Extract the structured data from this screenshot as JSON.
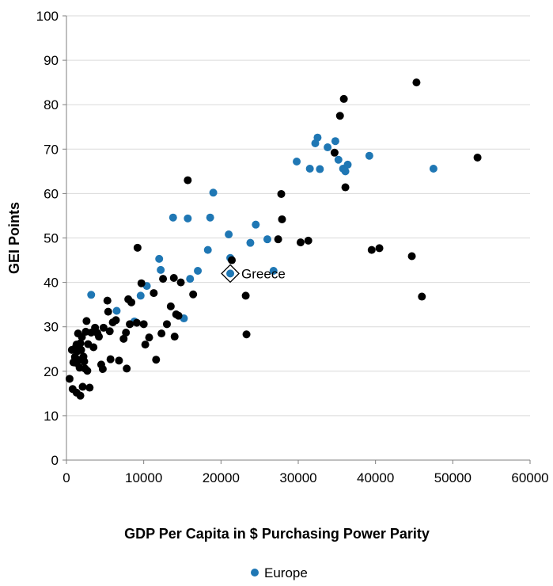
{
  "chart_data": {
    "type": "scatter",
    "xlabel": "GDP  Per Capita in $ Purchasing Power Parity",
    "ylabel": "GEI Points",
    "xlim": [
      0,
      60000
    ],
    "ylim": [
      0,
      100
    ],
    "x_ticks": [
      "0",
      "10000",
      "20000",
      "30000",
      "40000",
      "50000",
      "60000"
    ],
    "y_ticks": [
      "0",
      "10",
      "20",
      "30",
      "40",
      "50",
      "60",
      "70",
      "80",
      "90",
      "100"
    ],
    "grid": "horizontal",
    "legend_position": "bottom",
    "colors": {
      "europe": "#1f77b4",
      "other": "#000000",
      "axis": "#7f7f7f",
      "grid": "#d9d9d9"
    },
    "annotation": {
      "text": "Greece",
      "x": 21200,
      "y": 42.0,
      "marker": "diamond"
    },
    "series": [
      {
        "name": "Europe",
        "color": "#1f77b4",
        "points": [
          [
            3200,
            37.2
          ],
          [
            6500,
            33.6
          ],
          [
            8800,
            31.2
          ],
          [
            9600,
            37.0
          ],
          [
            10400,
            39.2
          ],
          [
            12000,
            45.3
          ],
          [
            12200,
            42.8
          ],
          [
            13800,
            54.6
          ],
          [
            15200,
            31.9
          ],
          [
            15700,
            54.4
          ],
          [
            16000,
            40.8
          ],
          [
            17000,
            42.6
          ],
          [
            18300,
            47.3
          ],
          [
            18600,
            54.6
          ],
          [
            19000,
            60.2
          ],
          [
            21000,
            50.8
          ],
          [
            21200,
            45.5
          ],
          [
            21200,
            42.0
          ],
          [
            23800,
            48.9
          ],
          [
            24500,
            53.0
          ],
          [
            26000,
            49.7
          ],
          [
            26800,
            42.6
          ],
          [
            29800,
            67.2
          ],
          [
            31500,
            65.6
          ],
          [
            32200,
            71.3
          ],
          [
            32500,
            72.6
          ],
          [
            32800,
            65.5
          ],
          [
            33800,
            70.4
          ],
          [
            34800,
            71.8
          ],
          [
            35200,
            67.6
          ],
          [
            35800,
            65.6
          ],
          [
            36100,
            65.0
          ],
          [
            36400,
            66.5
          ],
          [
            39200,
            68.5
          ],
          [
            47500,
            65.6
          ]
        ]
      },
      {
        "name": "",
        "color": "#000000",
        "points": [
          [
            400,
            18.3
          ],
          [
            700,
            24.8
          ],
          [
            800,
            16.0
          ],
          [
            900,
            22.0
          ],
          [
            1000,
            25.0
          ],
          [
            1100,
            23.2
          ],
          [
            1200,
            21.9
          ],
          [
            1300,
            15.2
          ],
          [
            1300,
            26.0
          ],
          [
            1400,
            24.5
          ],
          [
            1500,
            28.5
          ],
          [
            1600,
            22.5
          ],
          [
            1700,
            20.8
          ],
          [
            1800,
            14.5
          ],
          [
            1800,
            26.3
          ],
          [
            1900,
            24.8
          ],
          [
            2000,
            27.7
          ],
          [
            2100,
            16.5
          ],
          [
            2200,
            23.3
          ],
          [
            2300,
            22.2
          ],
          [
            2400,
            20.6
          ],
          [
            2500,
            28.9
          ],
          [
            2600,
            31.3
          ],
          [
            2700,
            20.1
          ],
          [
            2800,
            26.1
          ],
          [
            3000,
            16.3
          ],
          [
            3200,
            28.7
          ],
          [
            3500,
            25.4
          ],
          [
            3700,
            29.8
          ],
          [
            4000,
            28.6
          ],
          [
            4200,
            27.8
          ],
          [
            4500,
            21.5
          ],
          [
            4700,
            20.5
          ],
          [
            4800,
            29.8
          ],
          [
            5300,
            35.9
          ],
          [
            5400,
            33.4
          ],
          [
            5600,
            29.0
          ],
          [
            5700,
            22.7
          ],
          [
            6000,
            31.0
          ],
          [
            6400,
            31.5
          ],
          [
            6800,
            22.4
          ],
          [
            7400,
            27.3
          ],
          [
            7700,
            28.7
          ],
          [
            7800,
            20.6
          ],
          [
            8000,
            36.2
          ],
          [
            8200,
            30.6
          ],
          [
            8400,
            35.5
          ],
          [
            9100,
            30.9
          ],
          [
            9200,
            47.8
          ],
          [
            9700,
            39.8
          ],
          [
            10000,
            30.6
          ],
          [
            10200,
            26.0
          ],
          [
            10700,
            27.6
          ],
          [
            11300,
            37.6
          ],
          [
            11600,
            22.6
          ],
          [
            12300,
            28.5
          ],
          [
            12500,
            40.8
          ],
          [
            13000,
            30.6
          ],
          [
            13500,
            34.6
          ],
          [
            13900,
            41.0
          ],
          [
            14000,
            27.8
          ],
          [
            14200,
            32.8
          ],
          [
            14500,
            32.5
          ],
          [
            14800,
            40.0
          ],
          [
            15700,
            63.0
          ],
          [
            16400,
            37.3
          ],
          [
            21400,
            45.0
          ],
          [
            23200,
            37.0
          ],
          [
            23300,
            28.3
          ],
          [
            27400,
            49.7
          ],
          [
            27800,
            59.9
          ],
          [
            27900,
            54.2
          ],
          [
            30300,
            49.0
          ],
          [
            31300,
            49.4
          ],
          [
            34700,
            69.2
          ],
          [
            35400,
            77.5
          ],
          [
            35900,
            81.3
          ],
          [
            36100,
            61.4
          ],
          [
            39500,
            47.3
          ],
          [
            40500,
            47.7
          ],
          [
            44700,
            45.9
          ],
          [
            45300,
            85.0
          ],
          [
            46000,
            36.8
          ],
          [
            53200,
            68.1
          ]
        ]
      }
    ]
  }
}
